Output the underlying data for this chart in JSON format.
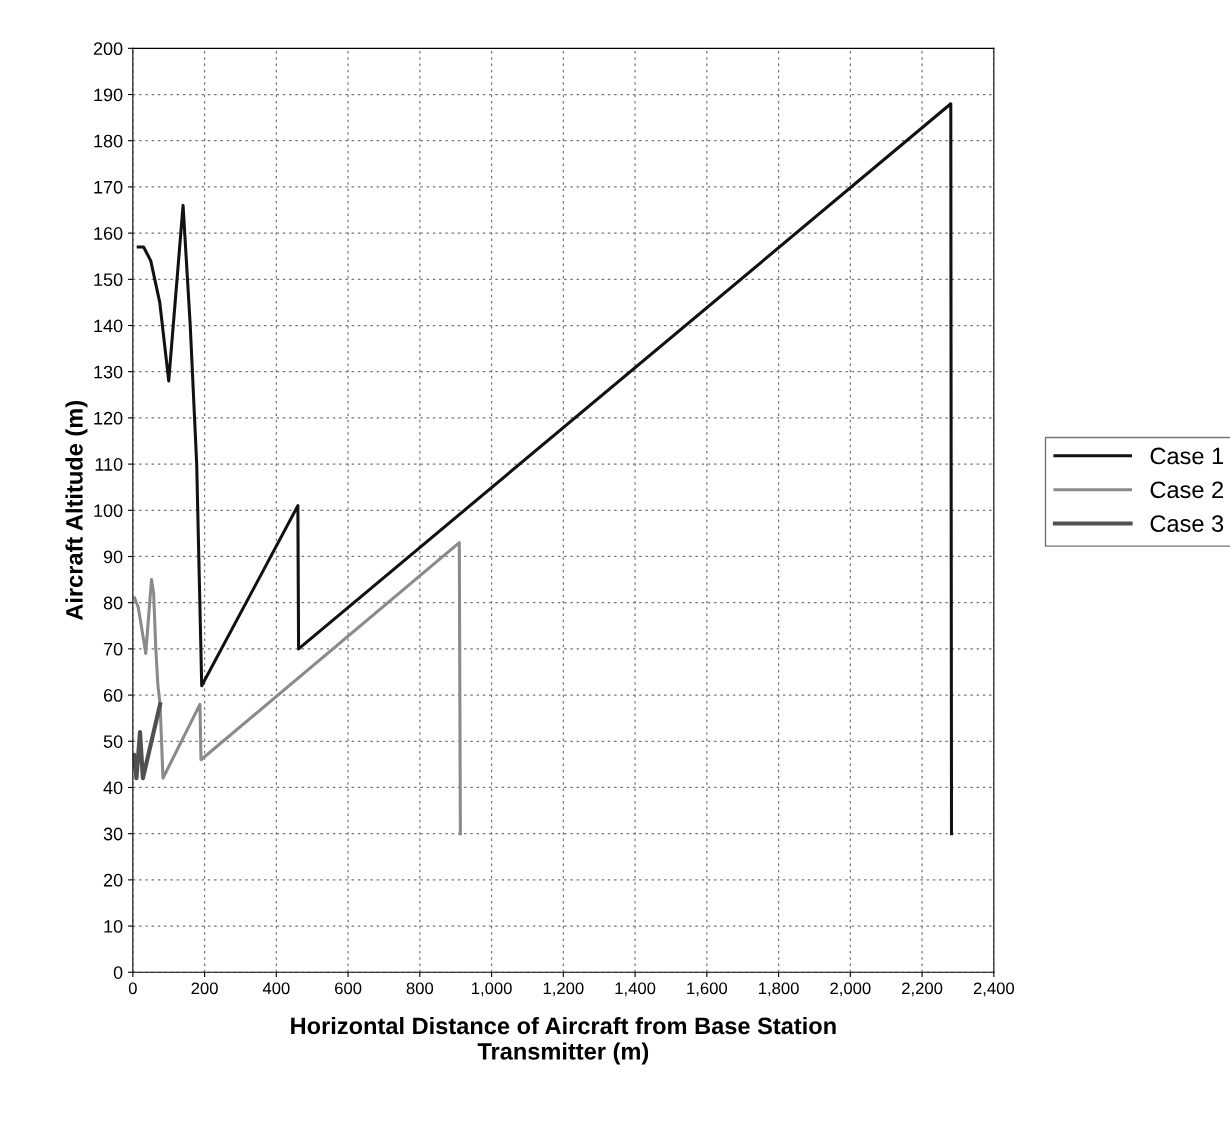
{
  "chart_data": {
    "type": "line",
    "xlabel": "Horizontal Distance of Aircraft from Base Station\nTransmitter (m)",
    "ylabel": "Aircraft Altitude (m)",
    "xlim": [
      0,
      2400
    ],
    "xticks": [
      0,
      200,
      400,
      600,
      800,
      {
        "value": 1000,
        "label": "1,000"
      },
      {
        "value": 1200,
        "label": "1,200"
      },
      {
        "value": 1400,
        "label": "1,400"
      },
      {
        "value": 1600,
        "label": "1,600"
      },
      {
        "value": 1800,
        "label": "1,800"
      },
      {
        "value": 2000,
        "label": "2,000"
      },
      {
        "value": 2200,
        "label": "2,200"
      },
      {
        "value": 2400,
        "label": "2,400"
      }
    ],
    "ylim": [
      0,
      200
    ],
    "yticks": [
      0,
      10,
      20,
      30,
      40,
      50,
      60,
      70,
      80,
      90,
      100,
      110,
      120,
      130,
      140,
      150,
      160,
      170,
      180,
      190,
      200
    ],
    "grid": true,
    "legend": "right",
    "line_style": "solid",
    "marker": "none",
    "series": [
      {
        "name": "Case 1",
        "color": "#111111",
        "x": [
          15,
          30,
          50,
          75,
          100,
          140,
          160,
          178,
          192,
          460,
          462,
          2280,
          2282
        ],
        "values": [
          157,
          157,
          154,
          145,
          128,
          166,
          140,
          110,
          62,
          101,
          70,
          188,
          30
        ]
      },
      {
        "name": "Case 2",
        "color": "#8a8a8a",
        "x": [
          5,
          15,
          30,
          36,
          45,
          52,
          58,
          64,
          70,
          76,
          84,
          187,
          190,
          910,
          913
        ],
        "values": [
          81,
          79,
          72,
          69,
          78,
          85,
          82,
          70,
          62,
          58,
          42,
          58,
          46,
          93,
          30
        ]
      },
      {
        "name": "Case 3",
        "color": "#505050",
        "x": [
          3,
          10,
          20,
          28,
          76
        ],
        "values": [
          47,
          42,
          52,
          42,
          58
        ]
      }
    ]
  }
}
